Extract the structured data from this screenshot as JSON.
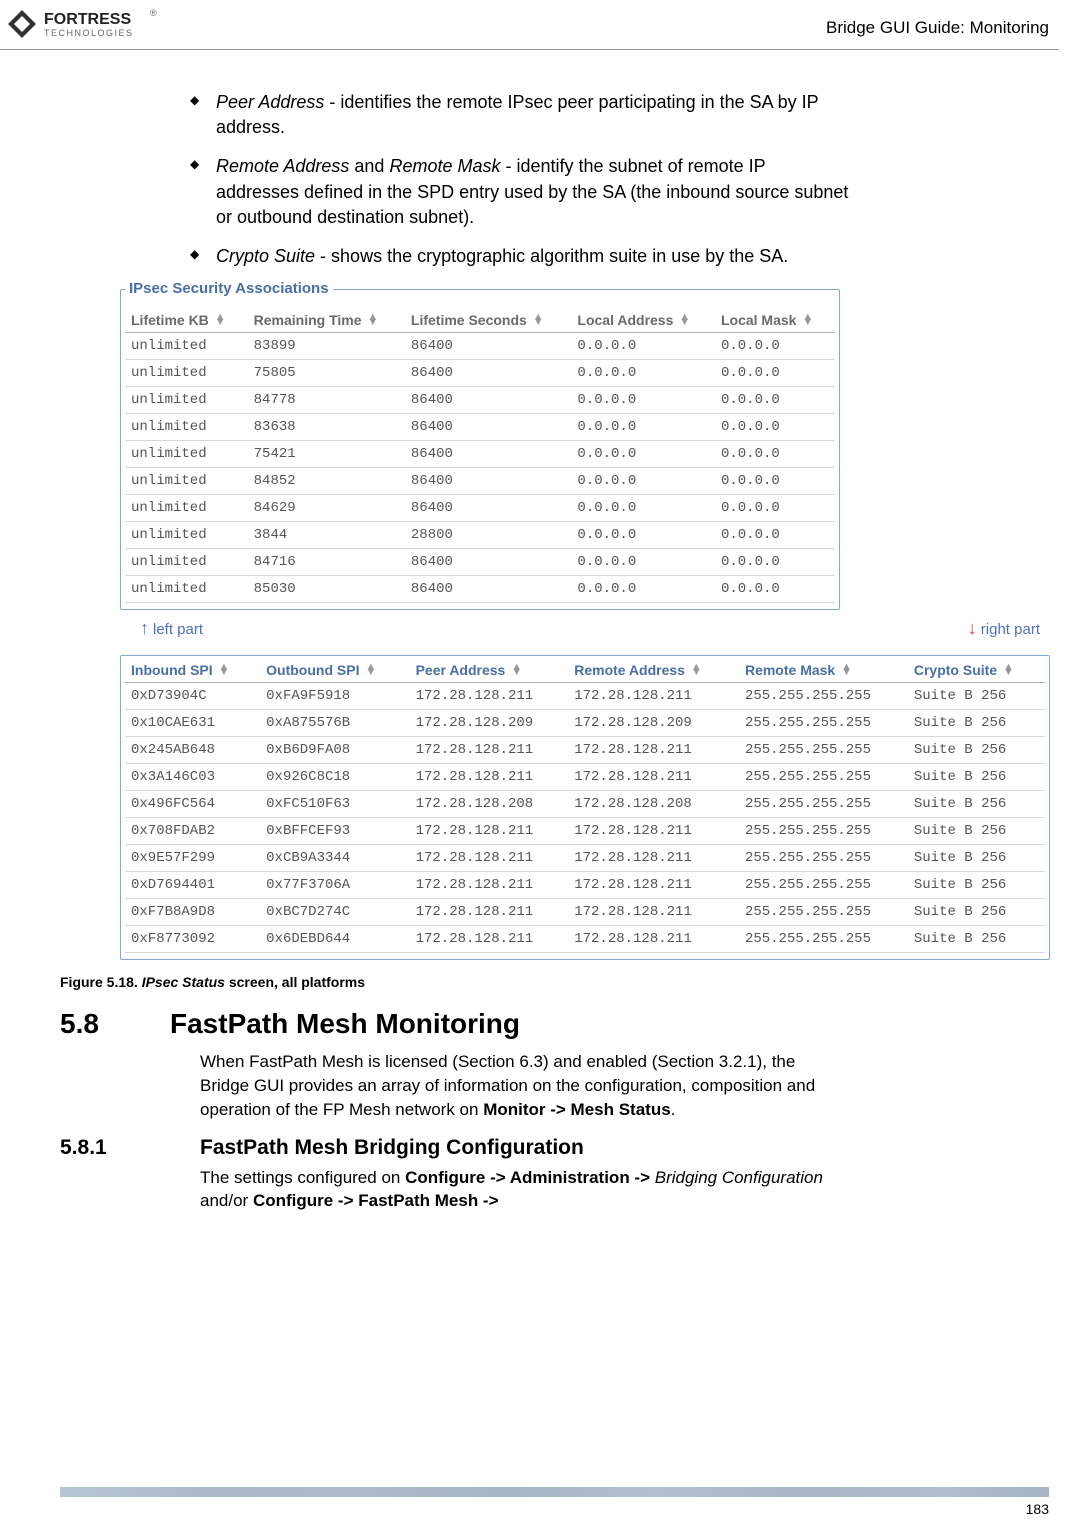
{
  "header": {
    "logo_main": "FORTRESS",
    "logo_sub": "TECHNOLOGIES",
    "breadcrumb": "Bridge GUI Guide: Monitoring"
  },
  "bullets": [
    {
      "term": "Peer Address",
      "rest": " - identifies the remote IPsec peer participating in the SA by IP address."
    },
    {
      "term": "Remote Address",
      "mid": " and ",
      "term2": "Remote Mask",
      "rest": " - identify the subnet of remote IP addresses defined in the SPD entry used by the SA (the inbound source subnet or outbound destination subnet)."
    },
    {
      "term": "Crypto Suite",
      "rest": " - shows the cryptographic algorithm suite in use by the SA."
    }
  ],
  "ipsec_group_title": "IPsec Security Associations",
  "table1": {
    "headers": [
      "Lifetime KB",
      "Remaining Time",
      "Lifetime Seconds",
      "Local Address",
      "Local Mask"
    ],
    "rows": [
      [
        "unlimited",
        "83899",
        "86400",
        "0.0.0.0",
        "0.0.0.0"
      ],
      [
        "unlimited",
        "75805",
        "86400",
        "0.0.0.0",
        "0.0.0.0"
      ],
      [
        "unlimited",
        "84778",
        "86400",
        "0.0.0.0",
        "0.0.0.0"
      ],
      [
        "unlimited",
        "83638",
        "86400",
        "0.0.0.0",
        "0.0.0.0"
      ],
      [
        "unlimited",
        "75421",
        "86400",
        "0.0.0.0",
        "0.0.0.0"
      ],
      [
        "unlimited",
        "84852",
        "86400",
        "0.0.0.0",
        "0.0.0.0"
      ],
      [
        "unlimited",
        "84629",
        "86400",
        "0.0.0.0",
        "0.0.0.0"
      ],
      [
        "unlimited",
        "3844",
        "28800",
        "0.0.0.0",
        "0.0.0.0"
      ],
      [
        "unlimited",
        "84716",
        "86400",
        "0.0.0.0",
        "0.0.0.0"
      ],
      [
        "unlimited",
        "85030",
        "86400",
        "0.0.0.0",
        "0.0.0.0"
      ]
    ]
  },
  "left_part_label": "left part",
  "right_part_label": "right part",
  "table2": {
    "headers": [
      "Inbound SPI",
      "Outbound SPI",
      "Peer Address",
      "Remote Address",
      "Remote Mask",
      "Crypto Suite"
    ],
    "rows": [
      [
        "0xD73904C",
        "0xFA9F5918",
        "172.28.128.211",
        "172.28.128.211",
        "255.255.255.255",
        "Suite B 256"
      ],
      [
        "0x10CAE631",
        "0xA875576B",
        "172.28.128.209",
        "172.28.128.209",
        "255.255.255.255",
        "Suite B 256"
      ],
      [
        "0x245AB648",
        "0xB6D9FA08",
        "172.28.128.211",
        "172.28.128.211",
        "255.255.255.255",
        "Suite B 256"
      ],
      [
        "0x3A146C03",
        "0x926C8C18",
        "172.28.128.211",
        "172.28.128.211",
        "255.255.255.255",
        "Suite B 256"
      ],
      [
        "0x496FC564",
        "0xFC510F63",
        "172.28.128.208",
        "172.28.128.208",
        "255.255.255.255",
        "Suite B 256"
      ],
      [
        "0x708FDAB2",
        "0xBFFCEF93",
        "172.28.128.211",
        "172.28.128.211",
        "255.255.255.255",
        "Suite B 256"
      ],
      [
        "0x9E57F299",
        "0xCB9A3344",
        "172.28.128.211",
        "172.28.128.211",
        "255.255.255.255",
        "Suite B 256"
      ],
      [
        "0xD7694401",
        "0x77F3706A",
        "172.28.128.211",
        "172.28.128.211",
        "255.255.255.255",
        "Suite B 256"
      ],
      [
        "0xF7B8A9D8",
        "0xBC7D274C",
        "172.28.128.211",
        "172.28.128.211",
        "255.255.255.255",
        "Suite B 256"
      ],
      [
        "0xF8773092",
        "0x6DEBD644",
        "172.28.128.211",
        "172.28.128.211",
        "255.255.255.255",
        "Suite B 256"
      ]
    ]
  },
  "figure_caption": {
    "num": "Figure 5.18. ",
    "ital": "IPsec Status",
    "rest": " screen, all platforms"
  },
  "section58": {
    "num": "5.8",
    "title": "FastPath Mesh Monitoring"
  },
  "section58_body_pre": "When FastPath Mesh is licensed (Section 6.3) and enabled (Section 3.2.1), the Bridge GUI provides an array of information on the configuration, composition and operation of the FP Mesh network on ",
  "section58_body_bold": "Monitor -> Mesh Status",
  "section58_body_post": ".",
  "section581": {
    "num": "5.8.1",
    "title": "FastPath Mesh Bridging Configuration"
  },
  "section581_body_pre": "The settings configured on ",
  "section581_body_b1": "Configure -> Administration -> ",
  "section581_body_mid": "Bridging Configuration",
  "section581_body_mid2": " and/or ",
  "section581_body_b2": "Configure -> FastPath Mesh ->",
  "page_number": "183"
}
